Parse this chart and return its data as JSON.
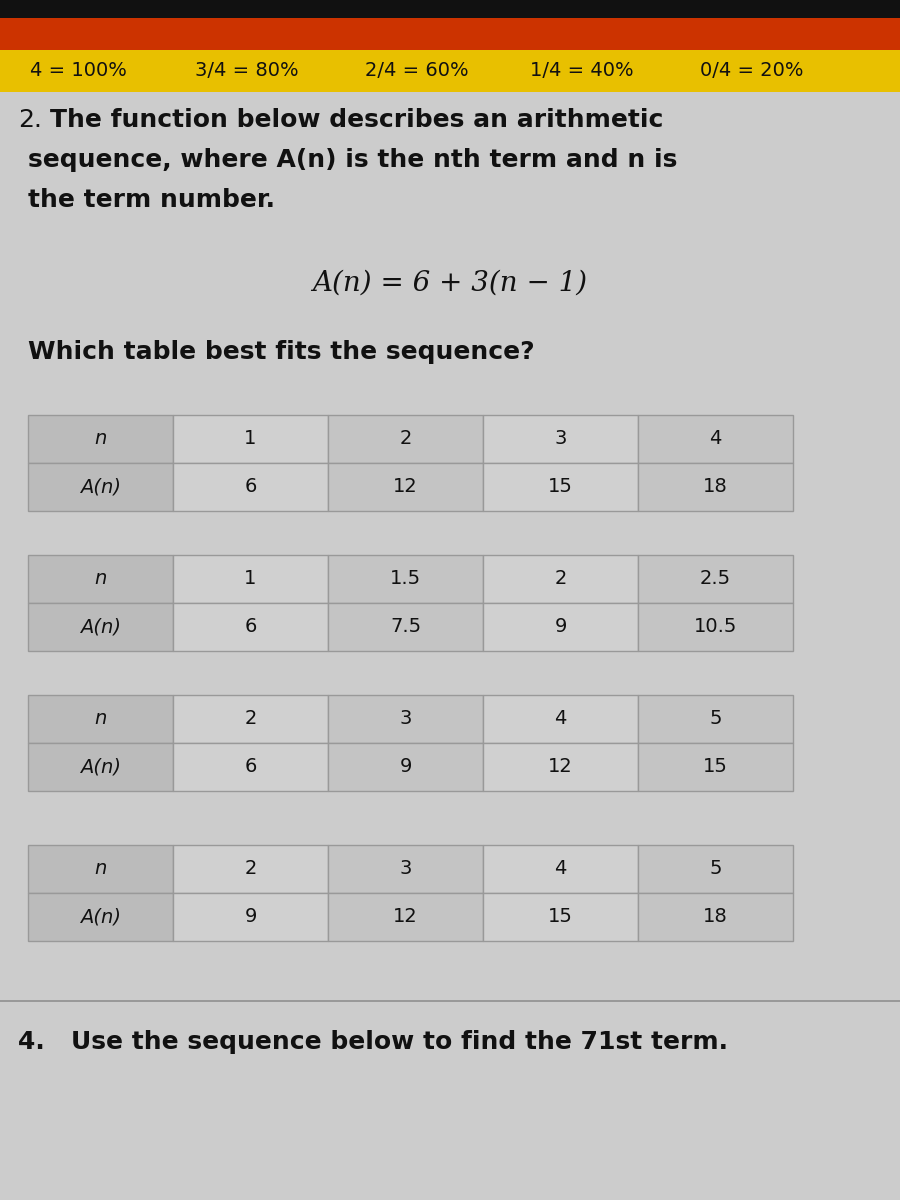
{
  "top_black_color": "#111111",
  "top_bar_color": "#CC3300",
  "score_bar_color": "#E8C000",
  "score_bar_items": [
    "4 = 100%",
    "3/4 = 80%",
    "2/4 = 60%",
    "1/4 = 40%",
    "0/4 = 20%"
  ],
  "score_bar_fontsize": 14,
  "bg_color": "#CCCCCC",
  "question_number": "2.",
  "question_text_line1": "The function below describes an arithmetic",
  "question_text_line2": "sequence, where A(n) is the nth term and n is",
  "question_text_line3": "the term number.",
  "formula": "A(n) = 6 + 3(n − 1)",
  "which_table_text": "Which table best fits the sequence?",
  "tables": [
    {
      "n_row": [
        "n",
        "1",
        "2",
        "3",
        "4"
      ],
      "an_row": [
        "A(n)",
        "6",
        "12",
        "15",
        "18"
      ]
    },
    {
      "n_row": [
        "n",
        "1",
        "1.5",
        "2",
        "2.5"
      ],
      "an_row": [
        "A(n)",
        "6",
        "7.5",
        "9",
        "10.5"
      ]
    },
    {
      "n_row": [
        "n",
        "2",
        "3",
        "4",
        "5"
      ],
      "an_row": [
        "A(n)",
        "6",
        "9",
        "12",
        "15"
      ]
    },
    {
      "n_row": [
        "n",
        "2",
        "3",
        "4",
        "5"
      ],
      "an_row": [
        "A(n)",
        "9",
        "12",
        "15",
        "18"
      ]
    }
  ],
  "bottom_text": "4.   Use the sequence below to find the 71st term.",
  "text_color": "#111111",
  "table_label_bg": "#BBBBBB",
  "table_odd_bg": "#D0D0D0",
  "table_even_bg": "#C4C4C4",
  "table_border": "#999999"
}
